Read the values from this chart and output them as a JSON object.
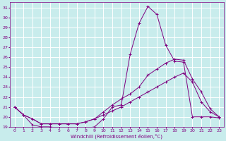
{
  "xlabel": "Windchill (Refroidissement éolien,°C)",
  "ylabel": "",
  "bg_color": "#c8ecec",
  "line_color": "#800080",
  "grid_color": "#ffffff",
  "xlim": [
    -0.5,
    23.5
  ],
  "ylim": [
    19,
    31.5
  ],
  "xticks": [
    0,
    1,
    2,
    3,
    4,
    5,
    6,
    7,
    8,
    9,
    10,
    11,
    12,
    13,
    14,
    15,
    16,
    17,
    18,
    19,
    20,
    21,
    22,
    23
  ],
  "yticks": [
    19,
    20,
    21,
    22,
    23,
    24,
    25,
    26,
    27,
    28,
    29,
    30,
    31
  ],
  "line1": {
    "x": [
      0,
      1,
      2,
      3,
      4,
      5,
      6,
      7,
      8,
      9,
      10,
      11,
      12,
      13,
      14,
      15,
      16,
      17,
      18,
      19,
      20,
      21,
      22,
      23
    ],
    "y": [
      21.0,
      20.2,
      19.2,
      19.0,
      19.0,
      18.85,
      18.75,
      18.75,
      18.85,
      19.0,
      19.8,
      21.0,
      21.2,
      26.3,
      29.4,
      31.1,
      30.3,
      27.2,
      25.6,
      25.5,
      20.0,
      20.0,
      20.0,
      19.9
    ]
  },
  "line2": {
    "x": [
      0,
      1,
      2,
      3,
      4,
      5,
      6,
      7,
      8,
      9,
      10,
      11,
      12,
      13,
      14,
      15,
      16,
      17,
      18,
      19,
      20,
      21,
      22,
      23
    ],
    "y": [
      21.0,
      20.2,
      19.8,
      19.3,
      19.3,
      19.3,
      19.3,
      19.3,
      19.5,
      19.8,
      20.5,
      21.2,
      21.8,
      22.3,
      23.0,
      24.2,
      24.8,
      25.4,
      25.8,
      25.7,
      23.8,
      22.5,
      20.8,
      20.0
    ]
  },
  "line3": {
    "x": [
      0,
      1,
      2,
      3,
      4,
      5,
      6,
      7,
      8,
      9,
      10,
      11,
      12,
      13,
      14,
      15,
      16,
      17,
      18,
      19,
      20,
      21,
      22,
      23
    ],
    "y": [
      21.0,
      20.2,
      19.8,
      19.3,
      19.3,
      19.3,
      19.3,
      19.3,
      19.5,
      19.8,
      20.2,
      20.6,
      21.0,
      21.5,
      22.0,
      22.5,
      23.0,
      23.5,
      24.0,
      24.4,
      23.5,
      21.5,
      20.5,
      20.0
    ]
  }
}
